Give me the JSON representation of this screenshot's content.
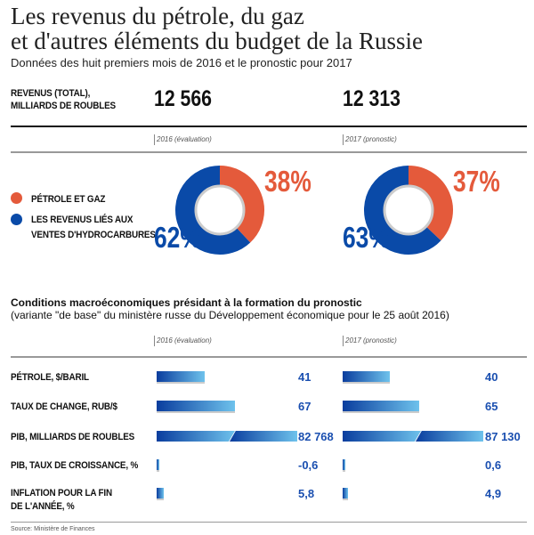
{
  "title": [
    "Les revenus du pétrole, du gaz",
    "et d'autres éléments du budget de la Russie"
  ],
  "subtitle": "Données des huit premiers mois de 2016 et le pronostic pour 2017",
  "colors": {
    "oil_gas": "#e45a3b",
    "other": "#0a4aa8"
  },
  "revenue": {
    "label": [
      "REVENUS (TOTAL),",
      "MILLIARDS DE ROUBLES"
    ],
    "v2016": "12 566",
    "v2017": "12 313"
  },
  "years": [
    "2016 (évaluation)",
    "2017 (pronostic)"
  ],
  "legend": [
    {
      "label": "PÉTROLE ET GAZ",
      "color": "#e45a3b"
    },
    {
      "label": [
        "LES REVENUS LIÉS AUX",
        "VENTES D'HYDROCARBURES"
      ],
      "color": "#0a4aa8"
    }
  ],
  "macro": {
    "title": "Conditions macroéconomiques présidant à la formation du pronostic",
    "subtitle": "(variante \"de base\" du ministère russe du Développement économique pour le 25 août 2016)"
  },
  "source": "Source: Ministère de Finances",
  "chart_data": [
    {
      "type": "pie",
      "variant": "donut",
      "title": "2016 (évaluation)",
      "categories": [
        "PÉTROLE ET GAZ",
        "LES REVENUS LIÉS AUX VENTES D'HYDROCARBURES"
      ],
      "values": [
        38,
        62
      ],
      "labels": [
        "38%",
        "62%"
      ]
    },
    {
      "type": "pie",
      "variant": "donut",
      "title": "2017 (pronostic)",
      "categories": [
        "PÉTROLE ET GAZ",
        "LES REVENUS LIÉS AUX VENTES D'HYDROCARBURES"
      ],
      "values": [
        37,
        63
      ],
      "labels": [
        "37%",
        "63%"
      ]
    },
    {
      "type": "bar",
      "orientation": "horizontal",
      "categories": [
        "PÉTROLE, $/BARIL",
        "TAUX DE CHANGE, RUB/$",
        "PIB, MILLIARDS DE ROUBLES",
        "PIB, TAUX DE CROISSANCE, %",
        "INFLATION POUR LA FIN DE L'ANNÉE, %"
      ],
      "category_lines": [
        [
          "PÉTROLE, $/BARIL"
        ],
        [
          "TAUX DE CHANGE, RUB/$"
        ],
        [
          "PIB, MILLIARDS DE ROUBLES"
        ],
        [
          "PIB, TAUX DE CROISSANCE, %"
        ],
        [
          "INFLATION POUR LA FIN",
          "DE L'ANNÉE, %"
        ]
      ],
      "series": [
        {
          "name": "2016 (évaluation)",
          "values": [
            41,
            67,
            82768,
            -0.6,
            5.8
          ],
          "labels": [
            "41",
            "67",
            "82 768",
            "-0,6",
            "5,8"
          ]
        },
        {
          "name": "2017 (pronostic)",
          "values": [
            40,
            65,
            87130,
            0.6,
            4.9
          ],
          "labels": [
            "40",
            "65",
            "87 130",
            "0,6",
            "4,9"
          ]
        }
      ],
      "broken_axis_category": "PIB, MILLIARDS DE ROUBLES"
    }
  ]
}
